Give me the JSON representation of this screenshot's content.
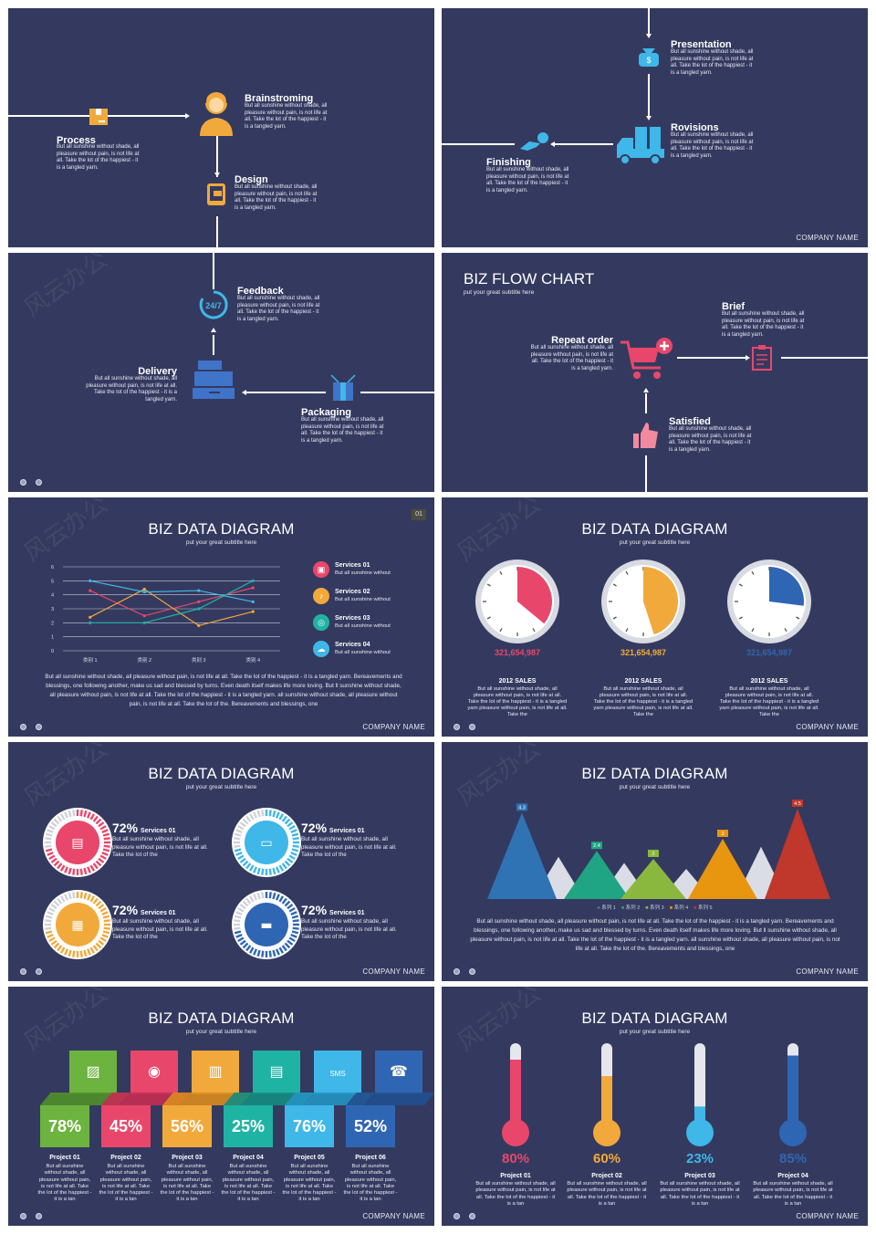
{
  "common": {
    "company": "COMPANY NAME",
    "title": "BIZ DATA DIAGRAM",
    "subtitle": "put your great subtitle here",
    "watermark": "风云办公",
    "body_short": "But all sunshine without shade, all pleasure without pain, is not life at all. Take the lot of the happiest - it is a tangled yarn."
  },
  "slide1": {
    "process": {
      "title": "Process",
      "text": "But all sunshine without shade, all pleasure without pain, is not life at all. Take the lot of the happiest - it is a tangled yarn."
    },
    "brainstorming": {
      "title": "Brainstroming",
      "text": "But all sunshine without shade, all pleasure without pain, is not life at all. Take the lot of the happiest - it is a tangled yarn."
    },
    "design": {
      "title": "Design",
      "text": "But all sunshine without shade, all pleasure without pain, is not life at all. Take the lot of the happiest - it is a tangled yarn."
    }
  },
  "slide2": {
    "presentation": {
      "title": "Presentation",
      "text": "But all sunshine without shade, all pleasure without pain, is not life at all. Take the lot of the happiest - it is a tangled yarn."
    },
    "rovisions": {
      "title": "Rovisions",
      "text": "But all sunshine without shade, all pleasure without pain, is not life at all. Take the lot of the happiest - it is a tangled yarn."
    },
    "finishing": {
      "title": "Finishing",
      "text": "But all sunshine without shade, all pleasure without pain, is not life at all. Take the lot of the happiest - it is a tangled yarn."
    }
  },
  "slide3": {
    "feedback": {
      "title": "Feedback",
      "text": "But all sunshine without shade, all pleasure without pain, is not life at all. Take the lot of the happiest - it is a tangled yarn."
    },
    "delivery": {
      "title": "Delivery",
      "text": "But all sunshine without shade, all pleasure without pain, is not life at all. Take the lot of the happiest - it is a tangled yarn."
    },
    "packaging": {
      "title": "Packaging",
      "text": "But all sunshine without shade, all pleasure without pain, is not life at all. Take the lot of the happiest - it is a tangled yarn."
    },
    "icon_247": "24/7"
  },
  "slide4": {
    "title": "BIZ FLOW CHART",
    "subtitle": "put your great subtitle here",
    "repeat": {
      "title": "Repeat order",
      "text": "But all sunshine without shade, all pleasure without pain, is not life at all. Take the lot of the happiest - it is a tangled yarn."
    },
    "brief": {
      "title": "Brief",
      "text": "But all sunshine without shade, all pleasure without pain, is not life at all. Take the lot of the happiest - it is a tangled yarn."
    },
    "satisfied": {
      "title": "Satisfied",
      "text": "But all sunshine without shade, all pleasure without pain, is not life at all. Take the lot of the happiest - it is a tangled yarn."
    }
  },
  "slide5": {
    "page_tag": "01",
    "services": [
      {
        "title": "Services 01",
        "text": "But all sunshine without",
        "color": "#e8476b"
      },
      {
        "title": "Services 02",
        "text": "But all sunshine without",
        "color": "#f2a93b"
      },
      {
        "title": "Services 03",
        "text": "But all sunshine without",
        "color": "#1fb3a4"
      },
      {
        "title": "Services 04",
        "text": "But all sunshine without",
        "color": "#3fb7e8"
      }
    ],
    "paragraph": "But all sunshine without shade, all pleasure without pain, is not life at all. Take the lot of the happiest - it is a tangled yarn. Bereavements and blessings, one following another, make us sad and blessed by turns. Even death itself makes life more loving. But ll sunshine without shade, all pleasure without pain, is not life at all. Take the lot of the happiest - it is a tangled yarn. all sunshine without shade, all pleasure without pain, is not life at all. Take the lot of the. Bereavements and blessings, one"
  },
  "chart_line": {
    "type": "line",
    "categories": [
      "类别 1",
      "类别 2",
      "类别 3",
      "类别 4"
    ],
    "yticks": [
      "0",
      "1",
      "2",
      "3",
      "4",
      "5",
      "6"
    ],
    "ylim": [
      0,
      6
    ],
    "series": [
      {
        "values": [
          4.3,
          2.5,
          3.5,
          4.5
        ],
        "color": "#e8476b"
      },
      {
        "values": [
          2.4,
          4.4,
          1.8,
          2.8
        ],
        "color": "#f2a93b"
      },
      {
        "values": [
          2.0,
          2.0,
          3.0,
          5.0
        ],
        "color": "#1fb3a4"
      },
      {
        "values": [
          5.0,
          4.2,
          4.3,
          3.5
        ],
        "color": "#3fb7e8"
      }
    ]
  },
  "slide6": {
    "clocks": [
      {
        "value": "321,654,987",
        "label": "2012 SALES",
        "text": "But all sunshine without shade, all pleasure without pain, is not life at all. Take the lot of the happiest - it is a tangled yarn pleasure without pain, is not life at all. Take the",
        "color": "#e8476b",
        "fraction": 0.36
      },
      {
        "value": "321,654,987",
        "label": "2012 SALES",
        "text": "But all sunshine without shade, all pleasure without pain, is not life at all. Take the lot of the happiest - it is a tangled yarn pleasure without pain, is not life at all. Take the",
        "color": "#f2a93b",
        "fraction": 0.45
      },
      {
        "value": "321,654,987",
        "label": "2012 SALES",
        "text": "But all sunshine without shade, all pleasure without pain, is not life at all. Take the lot of the happiest - it is a tangled yarn pleasure without pain, is not life at all. Take the",
        "color": "#2f66b3",
        "fraction": 0.27
      }
    ]
  },
  "slide7": {
    "items": [
      {
        "pct": "72%",
        "title": "Services 01",
        "text": "But all sunshine without shade, all pleasure without pain, is not life at all. Take the lot of the",
        "color": "#e8476b",
        "icon": "basket-icon"
      },
      {
        "pct": "72%",
        "title": "Services 01",
        "text": "But all sunshine without shade, all pleasure without pain, is not life at all. Take the lot of the",
        "color": "#3fb7e8",
        "icon": "payment-icon"
      },
      {
        "pct": "72%",
        "title": "Services 01",
        "text": "But all sunshine without shade, all pleasure without pain, is not life at all. Take the lot of the",
        "color": "#f2a93b",
        "icon": "gift-icon"
      },
      {
        "pct": "72%",
        "title": "Services 01",
        "text": "But all sunshine without shade, all pleasure without pain, is not life at all. Take the lot of the",
        "color": "#2f66b3",
        "icon": "delivery-truck-icon"
      }
    ]
  },
  "chart_mountain": {
    "type": "area",
    "values": [
      4.3,
      2.4,
      2,
      3,
      4.5
    ],
    "labels": [
      "4.3",
      "2.4",
      "2",
      "3",
      "4.5"
    ],
    "colors": [
      "#2f73b5",
      "#1fa584",
      "#8ab83e",
      "#e8950f",
      "#c0372b"
    ],
    "legend": [
      "系列 1",
      "系列 2",
      "系列 3",
      "系列 4",
      "系列 5"
    ],
    "paragraph": "But all sunshine without shade, all pleasure without pain, is not life at all. Take the lot of the happiest - it is a tangled yarn. Bereavements and blessings, one following another, make us sad and blessed by turns. Even death itself makes life more loving. But ll sunshine without shade, all pleasure without pain, is not life at all. Take the lot of the happiest - it is a tangled yarn. all sunshine without shade, all pleasure without pain, is not life at all. Take the lot of the. Bereavements and blessings, one"
  },
  "slide9": {
    "projects": [
      {
        "pct": "78%",
        "title": "Project 01",
        "color": "#6db33f",
        "dark": "#4f8f2a",
        "icon": "picture-icon"
      },
      {
        "pct": "45%",
        "title": "Project 02",
        "color": "#e8476b",
        "dark": "#c42e52",
        "icon": "disc-icon"
      },
      {
        "pct": "56%",
        "title": "Project 03",
        "color": "#f2a93b",
        "dark": "#d98b1e",
        "icon": "bus-icon"
      },
      {
        "pct": "25%",
        "title": "Project 04",
        "color": "#1fb3a4",
        "dark": "#148c80",
        "icon": "chat-icon"
      },
      {
        "pct": "76%",
        "title": "Project 05",
        "color": "#3fb7e8",
        "dark": "#2493c2",
        "icon": "sms-icon"
      },
      {
        "pct": "52%",
        "title": "Project 06",
        "color": "#2f66b3",
        "dark": "#21508f",
        "icon": "phone-icon"
      }
    ],
    "text": "But all sunshine without shade, all pleasure without pain, is not life at all. Take the lot of the happiest - it is a tan",
    "icon_sms": "SMS"
  },
  "slide10": {
    "thermos": [
      {
        "pct": "80%",
        "fraction": 0.8,
        "title": "Project 01",
        "text": "But all sunshine without shade, all pleasure without pain, is not life at all. Take the lot of the happiest - it is a tan",
        "color": "#e8476b"
      },
      {
        "pct": "60%",
        "fraction": 0.6,
        "title": "Project 02",
        "text": "But all sunshine without shade, all pleasure without pain, is not life at all. Take the lot of the happiest - it is a tan",
        "color": "#f2a93b"
      },
      {
        "pct": "23%",
        "fraction": 0.23,
        "title": "Project 03",
        "text": "But all sunshine without shade, all pleasure without pain, is not life at all. Take the lot of the happiest - it is a tan",
        "color": "#3fb7e8"
      },
      {
        "pct": "85%",
        "fraction": 0.85,
        "title": "Project 04",
        "text": "But all sunshine without shade, all pleasure without pain, is not life at all. Take the lot of the happiest - it is a tan",
        "color": "#2f66b3"
      }
    ]
  }
}
